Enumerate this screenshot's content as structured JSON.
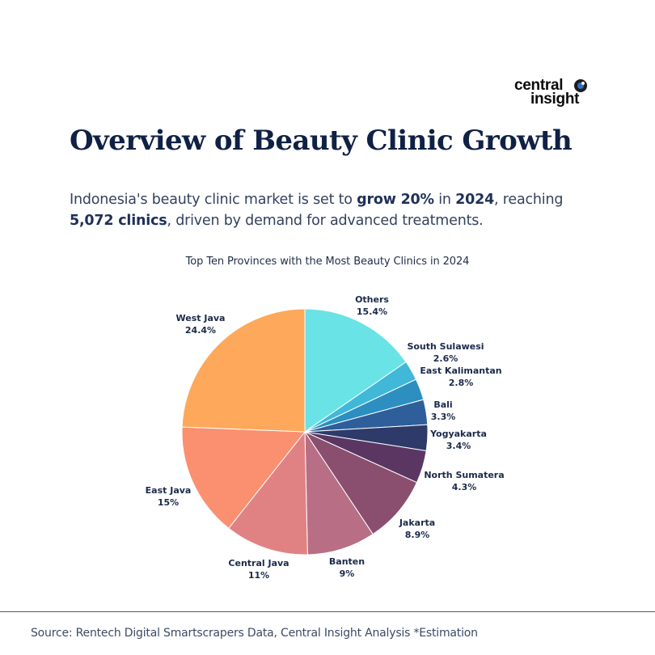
{
  "brand": {
    "line1": "central",
    "line2": "insight"
  },
  "header": {
    "title": "Overview of Beauty Clinic Growth",
    "subtitle_parts": [
      {
        "text": "Indonesia's beauty clinic market is set to ",
        "bold": false
      },
      {
        "text": "grow 20%",
        "bold": true
      },
      {
        "text": " in ",
        "bold": false
      },
      {
        "text": "2024",
        "bold": true
      },
      {
        "text": ", reaching ",
        "bold": false
      },
      {
        "text": "5,072 clinics",
        "bold": true
      },
      {
        "text": ", driven by demand for advanced treatments.",
        "bold": false
      }
    ]
  },
  "chart_data": {
    "type": "pie",
    "title": "Top Ten Provinces with the Most Beauty Clinics in 2024",
    "start": "12 o'clock",
    "direction": "clockwise",
    "slices": [
      {
        "label": "Others",
        "value": 15.4,
        "display": "15.4%",
        "color": "#6ae3e6"
      },
      {
        "label": "South Sulawesi",
        "value": 2.6,
        "display": "2.6%",
        "color": "#41b8d8"
      },
      {
        "label": "East Kalimantan",
        "value": 2.8,
        "display": "2.8%",
        "color": "#2c8fbf"
      },
      {
        "label": "Bali",
        "value": 3.3,
        "display": "3.3%",
        "color": "#2e5f9a"
      },
      {
        "label": "Yogyakarta",
        "value": 3.4,
        "display": "3.4%",
        "color": "#2e3a6a"
      },
      {
        "label": "North Sumatera",
        "value": 4.3,
        "display": "4.3%",
        "color": "#5b3663"
      },
      {
        "label": "Jakarta",
        "value": 8.9,
        "display": "8.9%",
        "color": "#8a4f6e"
      },
      {
        "label": "Banten",
        "value": 9.0,
        "display": "9%",
        "color": "#b86f86"
      },
      {
        "label": "Central Java",
        "value": 11.0,
        "display": "11%",
        "color": "#e08283"
      },
      {
        "label": "East Java",
        "value": 15.0,
        "display": "15%",
        "color": "#fb9071"
      },
      {
        "label": "West Java",
        "value": 24.4,
        "display": "24.4%",
        "color": "#fda85a"
      }
    ]
  },
  "footer": {
    "source": "Source: Rentech Digital Smartscrapers Data, Central Insight Analysis *Estimation"
  }
}
